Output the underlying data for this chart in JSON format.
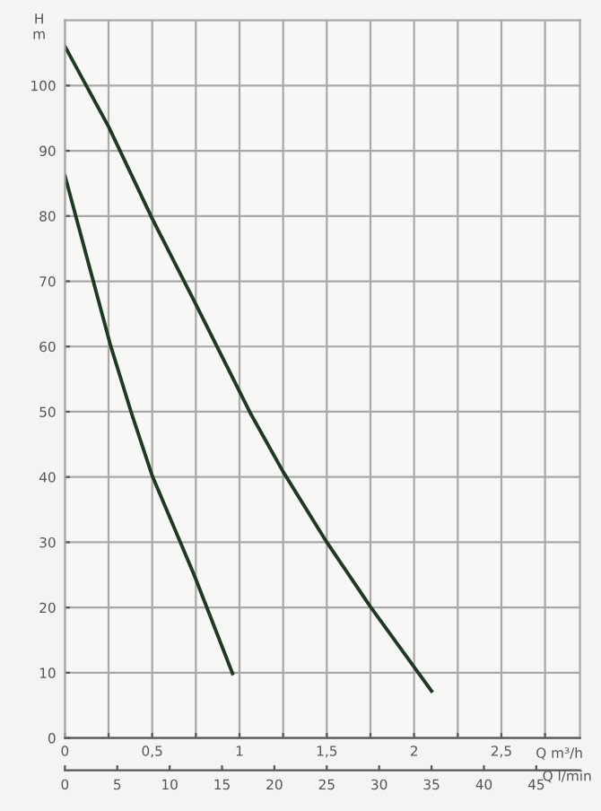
{
  "chart_data": {
    "type": "line",
    "xlabel": "Q m³/h",
    "x2label": "Q l/min",
    "ylabel": "H\nm",
    "series": [
      {
        "color": "#1e3a23",
        "x": [
          0,
          0.25,
          0.5,
          0.74,
          1.06,
          1.25,
          1.5,
          1.75,
          2.1
        ],
        "values": [
          106,
          93.7,
          79.6,
          67,
          49.9,
          40.8,
          30,
          20.1,
          7.2
        ]
      },
      {
        "color": "#1e3a23",
        "x": [
          0,
          0.26,
          0.38,
          0.5,
          0.74,
          0.96
        ],
        "values": [
          86.2,
          60.3,
          49.9,
          40.2,
          25,
          9.9
        ]
      }
    ],
    "xlim": [
      0,
      2.95
    ],
    "ylim": [
      0,
      110
    ],
    "xticks": [
      0,
      {
        "value": 0.25,
        "label": null
      },
      {
        "value": 0.5,
        "label": "0,5"
      },
      {
        "value": 0.75,
        "label": null
      },
      1,
      {
        "value": 1.25,
        "label": null
      },
      {
        "value": 1.5,
        "label": "1,5"
      },
      {
        "value": 1.75,
        "label": null
      },
      2,
      {
        "value": 2.25,
        "label": null
      },
      {
        "value": 2.5,
        "label": "2,5"
      },
      {
        "value": 2.75,
        "label": null
      }
    ],
    "yticks": [
      0,
      10,
      20,
      30,
      40,
      50,
      60,
      70,
      80,
      90,
      100
    ],
    "x2lim": [
      0,
      49.17
    ],
    "x2ticks": [
      0,
      5,
      10,
      15,
      20,
      25,
      30,
      35,
      40,
      45
    ],
    "grid": true,
    "marker": "none",
    "line_style": "solid"
  }
}
